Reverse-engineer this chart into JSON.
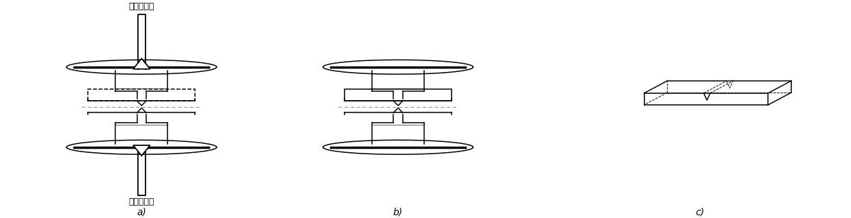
{
  "bg_color": "#ffffff",
  "text_color": "#000000",
  "label_a": "a)",
  "label_b": "b)",
  "label_c": "c)",
  "top_label": "加压、加热",
  "bottom_label": "加压、加热",
  "figsize": [
    12.4,
    3.18
  ],
  "dpi": 100
}
